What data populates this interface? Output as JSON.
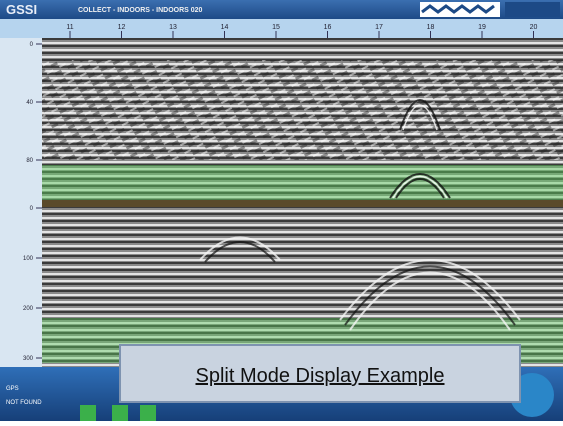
{
  "header": {
    "logo": "GSSI",
    "title": "COLLECT - INDOORS - INDOORS 020"
  },
  "ruler": {
    "marks": [
      "11",
      "12",
      "13",
      "14",
      "15",
      "16",
      "17",
      "18",
      "19",
      "20"
    ]
  },
  "top_panel": {
    "depth_labels": [
      "0",
      "40",
      "80"
    ]
  },
  "bottom_panel": {
    "depth_labels": [
      "0",
      "100",
      "200",
      "300"
    ]
  },
  "status": {
    "line1": "GPS",
    "line2": "NOT FOUND"
  },
  "caption": "Split Mode Display Example"
}
